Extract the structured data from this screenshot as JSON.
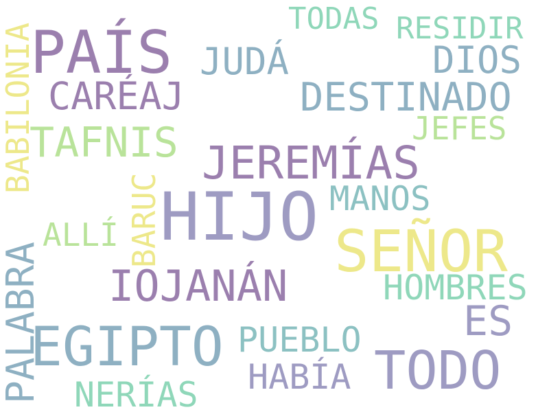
{
  "background": "#ffffff",
  "palette": {
    "purple": "#9b7fae",
    "lavender": "#9e9bc2",
    "slate": "#8eb0c2",
    "teal": "#8cc1c2",
    "mint": "#8fd7b9",
    "lime": "#b9e39a",
    "yellow": "#ede88a"
  },
  "words": [
    "PAÍS",
    "TODAS",
    "RESIDIR",
    "JUDÁ",
    "DIOS",
    "CARÉAJ",
    "DESTINADO",
    "JEFES",
    "TAFNIS",
    "JEREMÍAS",
    "BABILONIA",
    "BARUC",
    "HIJO",
    "MANOS",
    "ALLÍ",
    "SEÑOR",
    "PALABRA",
    "IOJANÁN",
    "HOMBRES",
    "ES",
    "EGIPTO",
    "PUEBLO",
    "TODO",
    "HABÍA",
    "NERÍAS"
  ]
}
